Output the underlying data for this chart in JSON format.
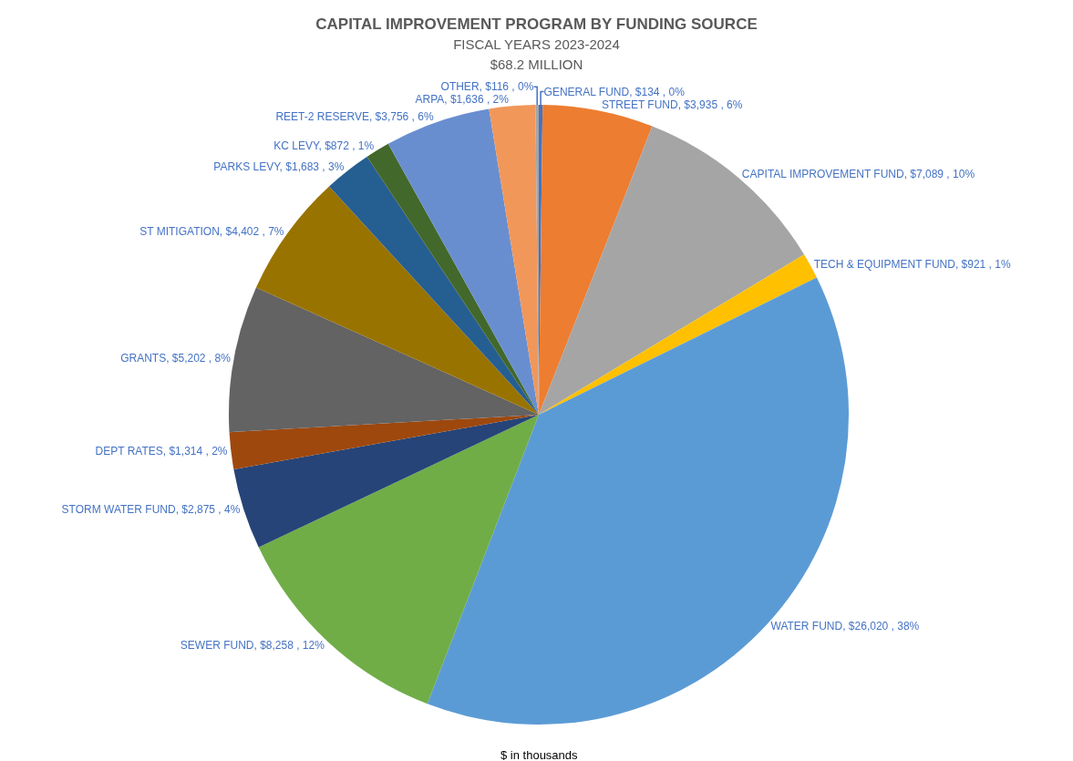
{
  "chart_data": {
    "type": "pie",
    "title": "CAPITAL IMPROVEMENT PROGRAM BY FUNDING SOURCE",
    "subtitle": "FISCAL YEARS 2023-2024",
    "categories": [
      "GENERAL FUND",
      "STREET FUND",
      "CAPITAL IMPROVEMENT FUND",
      "TECH & EQUIPMENT FUND",
      "WATER FUND",
      "SEWER FUND",
      "STORM WATER FUND",
      "DEPT RATES",
      "GRANTS",
      "ST MITIGATION",
      "PARKS LEVY",
      "KC LEVY",
      "REET-2 RESERVE",
      "ARPA",
      "OTHER"
    ],
    "values": [
      134,
      3935,
      7089,
      921,
      26020,
      8258,
      2875,
      1314,
      5202,
      4402,
      1683,
      872,
      3756,
      1636,
      116
    ],
    "value_labels": [
      "$134 , 0%",
      "$3,935 , 6%",
      "$7,089 , 10%",
      "$921 , 1%",
      "$26,020 , 38%",
      "$8,258 , 12%",
      "$2,875 , 4%",
      "$1,314 , 2%",
      "$5,202 , 8%",
      "$4,402 , 7%",
      "$1,683 , 3%",
      "$872 , 1%",
      "$3,756 , 6%",
      "$1,636 , 2%",
      "$116 , 0%"
    ],
    "colors": [
      "#4472c4",
      "#ed7d31",
      "#a5a5a5",
      "#ffc000",
      "#5b9bd5",
      "#70ad47",
      "#264478",
      "#9e480e",
      "#636363",
      "#997300",
      "#255e91",
      "#43682b",
      "#698ed0",
      "#f1975a",
      "#a5a5a5"
    ],
    "annotations": [
      "$68.2 MILLION",
      "$ in thousands"
    ],
    "legend": false
  }
}
